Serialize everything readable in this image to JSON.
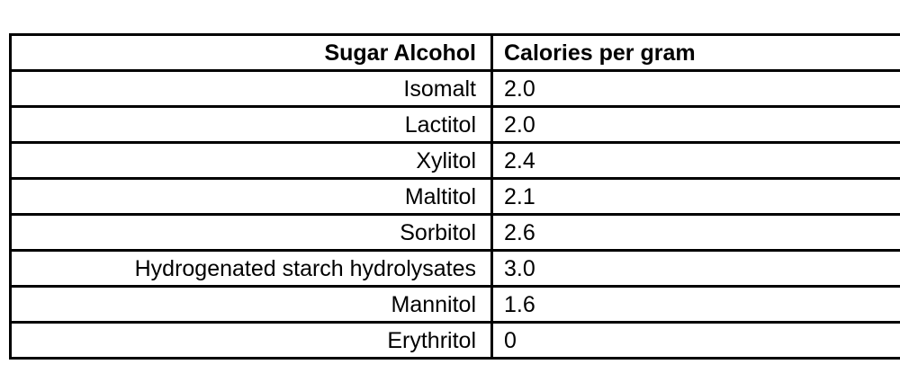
{
  "table": {
    "headers": [
      "Sugar Alcohol",
      "Calories per gram"
    ],
    "rows": [
      {
        "name": "Isomalt",
        "value": "2.0"
      },
      {
        "name": "Lactitol",
        "value": "2.0"
      },
      {
        "name": "Xylitol",
        "value": "2.4"
      },
      {
        "name": "Maltitol",
        "value": "2.1"
      },
      {
        "name": "Sorbitol",
        "value": "2.6"
      },
      {
        "name": "Hydrogenated starch hydrolysates",
        "value": "3.0"
      },
      {
        "name": "Mannitol",
        "value": "1.6"
      },
      {
        "name": "Erythritol",
        "value": "0"
      }
    ],
    "colors": {
      "border": "#000000",
      "text": "#000000",
      "background": "#ffffff"
    }
  }
}
